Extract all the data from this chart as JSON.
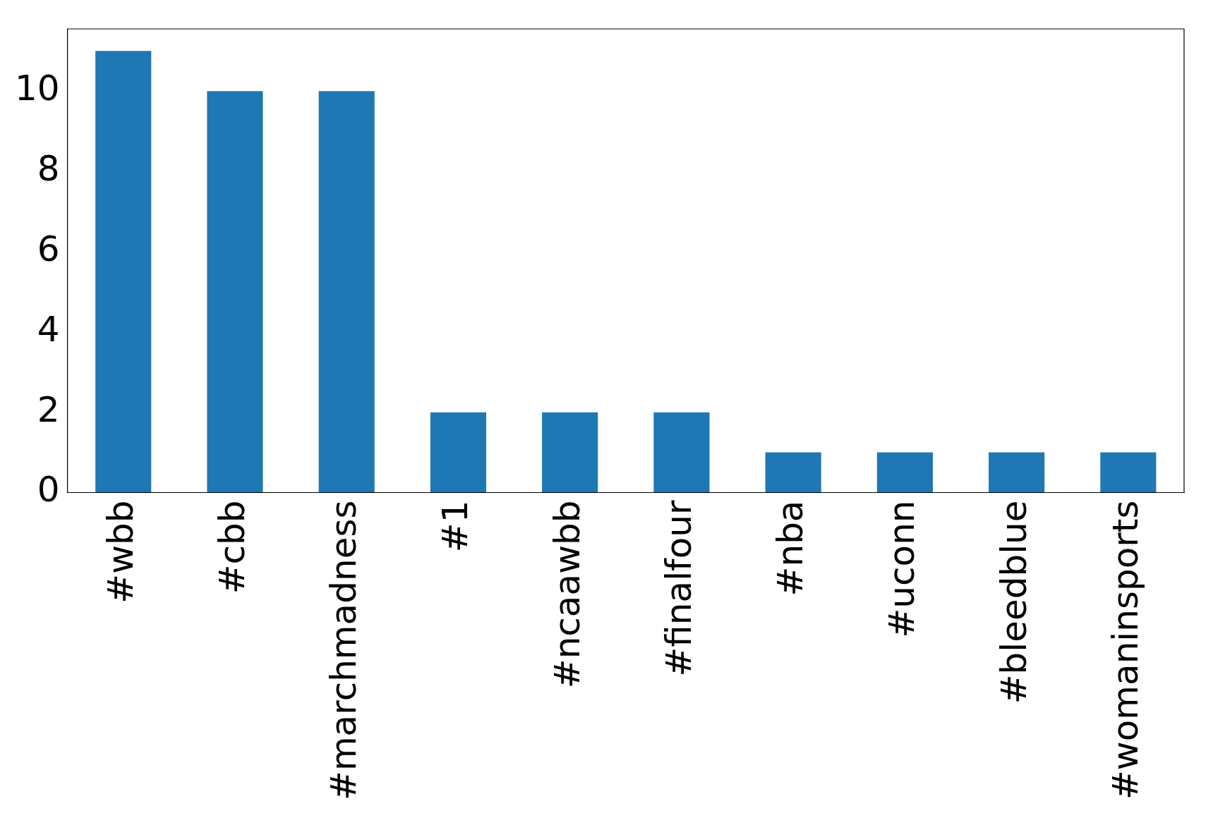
{
  "chart_data": {
    "type": "bar",
    "categories": [
      "#wbb",
      "#cbb",
      "#marchmadness",
      "#1",
      "#ncaawbb",
      "#finalfour",
      "#nba",
      "#uconn",
      "#bleedblue",
      "#womaninsports"
    ],
    "values": [
      11,
      10,
      10,
      2,
      2,
      2,
      1,
      1,
      1,
      1
    ],
    "color": "#1f77b4",
    "ylim": [
      0,
      11.55
    ],
    "yticks": [
      0,
      2,
      4,
      6,
      8,
      10
    ],
    "grid": false,
    "legend": false
  }
}
